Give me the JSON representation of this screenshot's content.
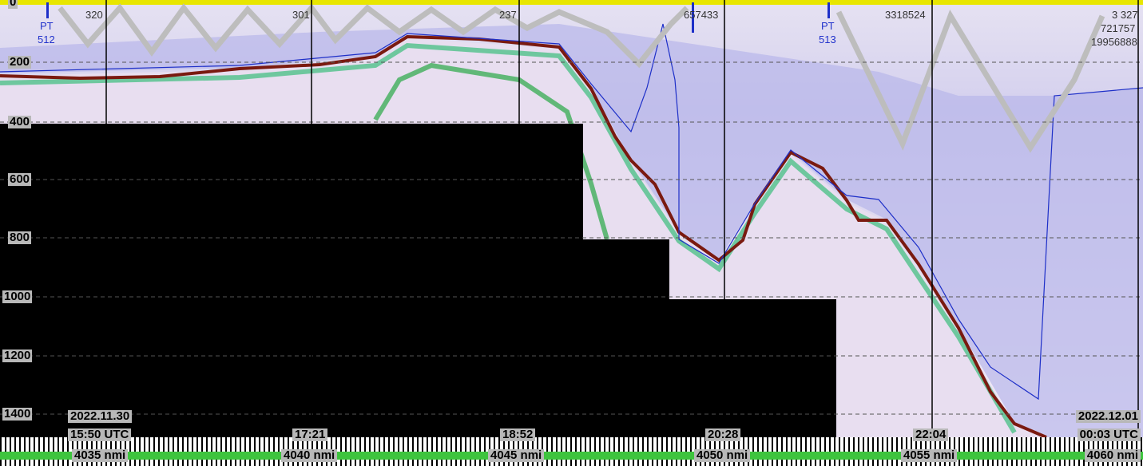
{
  "top_labels": [
    "320",
    "301",
    "237",
    "657433",
    "3318524",
    "3 327",
    "721757",
    "19956888"
  ],
  "markers": [
    {
      "code": "PT",
      "number": "512"
    },
    {
      "code": "PT",
      "number": "513"
    }
  ],
  "depth_labels": [
    "0",
    "200",
    "400",
    "600",
    "800",
    "1000",
    "1200",
    "1400"
  ],
  "dates": [
    "2022.11.30",
    "2022.12.01"
  ],
  "times": [
    "15:50 UTC",
    "17:21",
    "18:52",
    "20:28",
    "22:04",
    "00:03 UTC"
  ],
  "distances": [
    "4035 nmi",
    "4040 nmi",
    "4045 nmi",
    "4050 nmi",
    "4055 nmi",
    "4060 nmi"
  ]
}
